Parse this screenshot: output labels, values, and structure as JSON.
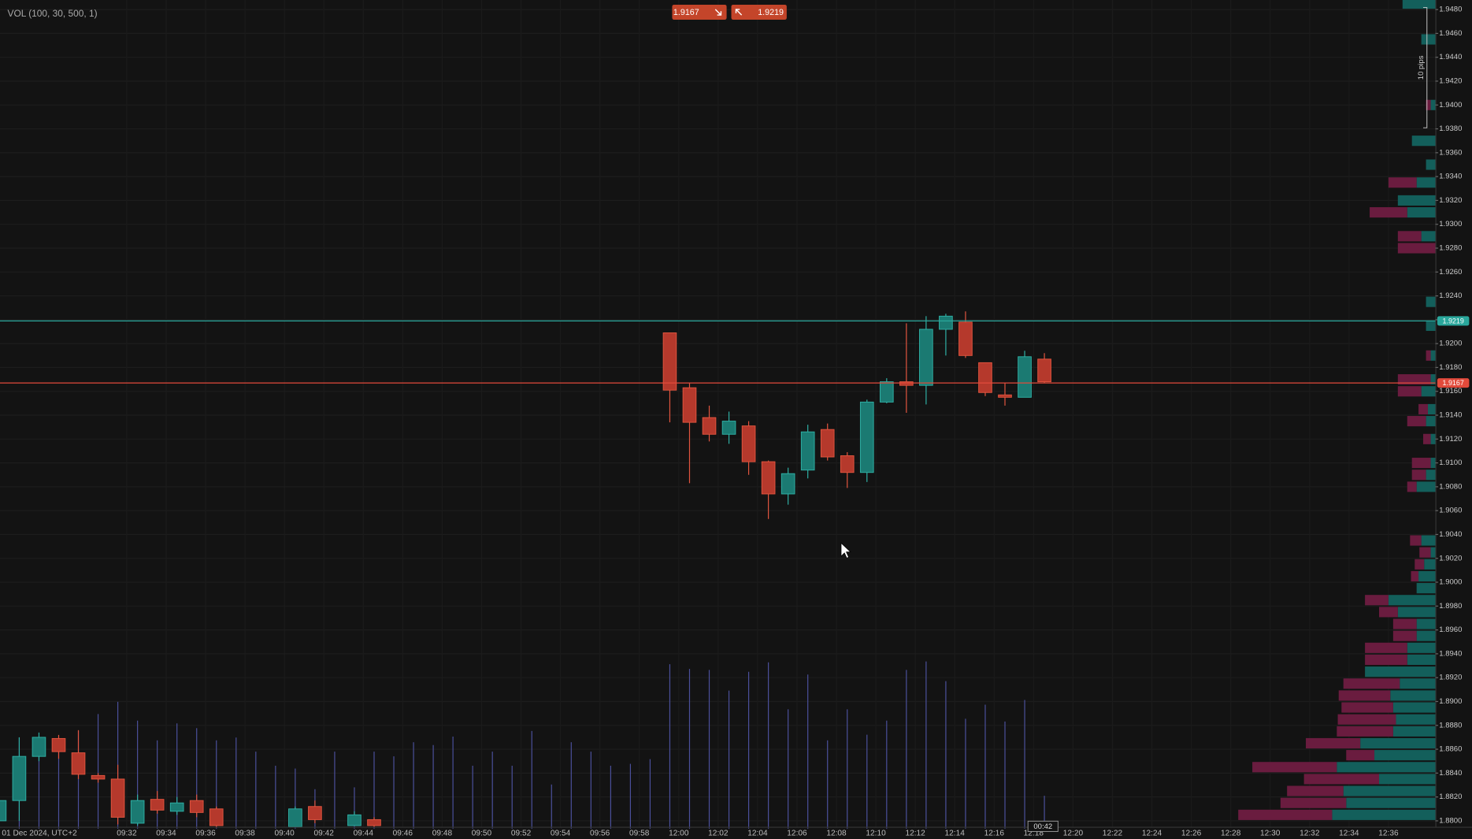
{
  "chart_data": {
    "type": "candlestick",
    "indicator_label": "VOL (100, 30, 500, 1)",
    "date_label": "01 Dec 2024, UTC+2",
    "range_label": "10 pips",
    "countdown": "00:42",
    "bid": 1.9167,
    "ask": 1.9219,
    "up_color": "#1b7a72",
    "down_color": "#b5392c",
    "volume_color": "#4b509c",
    "grid": true,
    "categories": [
      null,
      null,
      null,
      null,
      null,
      null,
      "09:32",
      null,
      "09:34",
      null,
      "09:36",
      null,
      "09:38",
      null,
      "09:40",
      null,
      "09:42",
      null,
      "09:44",
      null,
      "09:46",
      null,
      "09:48",
      null,
      "09:50",
      null,
      "09:52",
      null,
      "09:54",
      null,
      "09:56",
      null,
      "09:58",
      null,
      "12:00",
      null,
      "12:02",
      null,
      "12:04",
      null,
      "12:06",
      null,
      "12:08",
      null,
      "12:10",
      null,
      "12:12",
      null,
      "12:14",
      null,
      "12:16",
      null,
      "12:18",
      null,
      "12:20",
      null,
      "12:22",
      null,
      "12:24",
      null,
      "12:26",
      null,
      "12:28",
      null,
      "12:30",
      null,
      "12:32",
      null,
      "12:34",
      null,
      "12:36",
      null
    ],
    "open": [
      1.88,
      1.8817,
      1.8854,
      1.8869,
      1.8857,
      1.8838,
      1.8835,
      1.8798,
      1.8818,
      1.8808,
      1.8817,
      1.881,
      null,
      null,
      null,
      1.8795,
      1.8812,
      null,
      1.8796,
      1.8801,
      null,
      null,
      null,
      null,
      null,
      null,
      null,
      null,
      null,
      null,
      null,
      null,
      null,
      null,
      1.9209,
      1.9163,
      1.9138,
      1.9124,
      1.9131,
      1.9101,
      1.9074,
      1.9094,
      1.9128,
      1.9106,
      1.9092,
      1.9151,
      1.9168,
      1.9165,
      1.9212,
      1.9218,
      1.9184,
      1.9157,
      1.9155,
      1.9187,
      null,
      null,
      null,
      null,
      null,
      null,
      null,
      null,
      null,
      null,
      null,
      null,
      null,
      null,
      null,
      null,
      null,
      null
    ],
    "high": [
      1.8818,
      1.887,
      1.8874,
      1.8872,
      1.8876,
      1.884,
      1.8847,
      1.8822,
      1.8825,
      1.882,
      1.8822,
      1.8812,
      null,
      null,
      null,
      1.8812,
      1.8817,
      null,
      1.8808,
      1.8803,
      null,
      null,
      null,
      null,
      null,
      null,
      null,
      null,
      null,
      null,
      null,
      null,
      null,
      null,
      1.9209,
      1.9167,
      1.9148,
      1.9143,
      1.9135,
      1.9102,
      1.9096,
      1.9132,
      1.9133,
      1.9109,
      1.9153,
      1.9171,
      1.9217,
      1.9223,
      1.9225,
      1.9227,
      1.9184,
      1.9167,
      1.9194,
      1.9192,
      null,
      null,
      null,
      null,
      null,
      null,
      null,
      null,
      null,
      null,
      null,
      null,
      null,
      null,
      null,
      null,
      null,
      null
    ],
    "low": [
      1.8795,
      1.88,
      1.885,
      1.8852,
      1.8835,
      1.8832,
      1.8797,
      1.8796,
      1.8806,
      1.8805,
      1.8803,
      1.8794,
      null,
      null,
      null,
      1.8795,
      1.8798,
      null,
      1.8796,
      1.8795,
      null,
      null,
      null,
      null,
      null,
      null,
      null,
      null,
      null,
      null,
      null,
      null,
      null,
      null,
      1.9134,
      1.9083,
      1.9118,
      1.9116,
      1.909,
      1.9053,
      1.9065,
      1.9087,
      1.9102,
      1.9079,
      1.9084,
      1.915,
      1.9142,
      1.9149,
      1.919,
      1.9188,
      1.9156,
      1.9148,
      1.9155,
      1.9167,
      null,
      null,
      null,
      null,
      null,
      null,
      null,
      null,
      null,
      null,
      null,
      null,
      null,
      null,
      null,
      null,
      null,
      null
    ],
    "close": [
      1.8817,
      1.8854,
      1.887,
      1.8858,
      1.8839,
      1.8835,
      1.8803,
      1.8817,
      1.8809,
      1.8815,
      1.8807,
      1.8796,
      null,
      null,
      null,
      1.881,
      1.8801,
      null,
      1.8805,
      1.8796,
      null,
      null,
      null,
      null,
      null,
      null,
      null,
      null,
      null,
      null,
      null,
      null,
      null,
      null,
      1.9161,
      1.9134,
      1.9124,
      1.9135,
      1.9101,
      1.9074,
      1.9091,
      1.9126,
      1.9105,
      1.9092,
      1.9151,
      1.9168,
      1.9165,
      1.9212,
      1.9223,
      1.919,
      1.9159,
      1.9155,
      1.9189,
      1.9168,
      null,
      null,
      null,
      null,
      null,
      null,
      null,
      null,
      null,
      null,
      null,
      null,
      null,
      null,
      null,
      null,
      null,
      null
    ],
    "volume": [
      null,
      97,
      97,
      92,
      104,
      122,
      135,
      115,
      94,
      112,
      107,
      94,
      97,
      82,
      67,
      64,
      42,
      82,
      44,
      82,
      77,
      92,
      89,
      98,
      67,
      82,
      67,
      104,
      47,
      92,
      82,
      67,
      69,
      74,
      175,
      170,
      169,
      147,
      167,
      177,
      127,
      164,
      94,
      127,
      100,
      115,
      169,
      178,
      157,
      117,
      132,
      114,
      137,
      35,
      null,
      null,
      null,
      null,
      null,
      null,
      null,
      null,
      null,
      null,
      null,
      null,
      null,
      null,
      null,
      null,
      null,
      null
    ],
    "profile": {
      "buy_color": "#135f5b",
      "sell_color": "#6a1c3f",
      "prices": [
        1.8805,
        1.8815,
        1.8825,
        1.8835,
        1.8845,
        1.8855,
        1.8865,
        1.8875,
        1.8885,
        1.8895,
        1.8905,
        1.8915,
        1.8925,
        1.8935,
        1.8945,
        1.8955,
        1.8965,
        1.8975,
        1.8985,
        1.8995,
        1.9005,
        1.9015,
        1.9025,
        1.9035,
        1.908,
        1.909,
        1.91,
        1.912,
        1.9135,
        1.9145,
        1.916,
        1.917,
        1.919,
        1.9215,
        1.9235,
        1.928,
        1.929,
        1.931,
        1.932,
        1.9335,
        1.935,
        1.937,
        1.94,
        1.9455,
        1.9485
      ],
      "buy": [
        110,
        95,
        98,
        60,
        105,
        65,
        80,
        45,
        42,
        45,
        48,
        38,
        75,
        30,
        30,
        20,
        20,
        40,
        50,
        20,
        18,
        12,
        5,
        15,
        20,
        10,
        5,
        5,
        10,
        8,
        15,
        5,
        5,
        10,
        10,
        0,
        15,
        30,
        40,
        20,
        10,
        25,
        5,
        15,
        35
      ],
      "sell": [
        100,
        70,
        60,
        80,
        90,
        30,
        58,
        60,
        62,
        55,
        55,
        60,
        0,
        45,
        45,
        25,
        25,
        20,
        25,
        0,
        8,
        10,
        12,
        12,
        10,
        15,
        20,
        8,
        20,
        10,
        25,
        35,
        5,
        0,
        0,
        40,
        25,
        40,
        0,
        30,
        0,
        0,
        5,
        0,
        0
      ]
    },
    "ylim": [
      1.8795,
      1.9488
    ],
    "yticks": [
      {
        "value": 1.88,
        "label": "1.8800"
      },
      {
        "value": 1.882,
        "label": "1.8820"
      },
      {
        "value": 1.884,
        "label": "1.8840"
      },
      {
        "value": 1.886,
        "label": "1.8860"
      },
      {
        "value": 1.888,
        "label": "1.8880"
      },
      {
        "value": 1.89,
        "label": "1.8900"
      },
      {
        "value": 1.892,
        "label": "1.8920"
      },
      {
        "value": 1.894,
        "label": "1.8940"
      },
      {
        "value": 1.896,
        "label": "1.8960"
      },
      {
        "value": 1.898,
        "label": "1.8980"
      },
      {
        "value": 1.9,
        "label": "1.9000"
      },
      {
        "value": 1.902,
        "label": "1.9020"
      },
      {
        "value": 1.904,
        "label": "1.9040"
      },
      {
        "value": 1.906,
        "label": "1.9060"
      },
      {
        "value": 1.908,
        "label": "1.9080"
      },
      {
        "value": 1.91,
        "label": "1.9100"
      },
      {
        "value": 1.912,
        "label": "1.9120"
      },
      {
        "value": 1.914,
        "label": "1.9140"
      },
      {
        "value": 1.916,
        "label": "1.9160"
      },
      {
        "value": 1.918,
        "label": "1.9180"
      },
      {
        "value": 1.92,
        "label": "1.9200"
      },
      {
        "value": 1.922,
        "label": "1.9220"
      },
      {
        "value": 1.924,
        "label": "1.9240"
      },
      {
        "value": 1.926,
        "label": "1.9260"
      },
      {
        "value": 1.928,
        "label": "1.9280"
      },
      {
        "value": 1.93,
        "label": "1.9300"
      },
      {
        "value": 1.932,
        "label": "1.9320"
      },
      {
        "value": 1.934,
        "label": "1.9340"
      },
      {
        "value": 1.936,
        "label": "1.9360"
      },
      {
        "value": 1.938,
        "label": "1.9380"
      },
      {
        "value": 1.94,
        "label": "1.9400"
      },
      {
        "value": 1.942,
        "label": "1.9420"
      },
      {
        "value": 1.944,
        "label": "1.9440"
      },
      {
        "value": 1.946,
        "label": "1.9460"
      },
      {
        "value": 1.948,
        "label": "1.9480"
      }
    ]
  }
}
